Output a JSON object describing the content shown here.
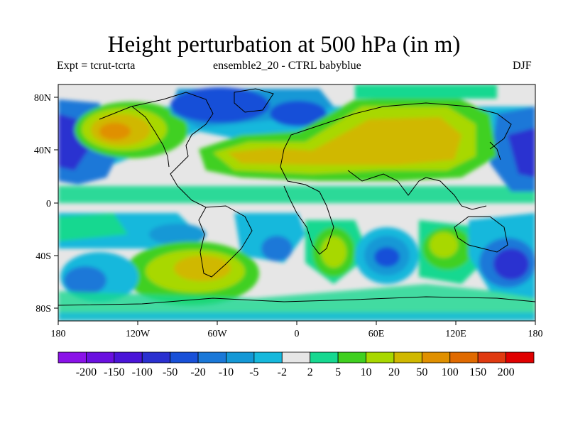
{
  "title": "Height perturbation at 500 hPa (in m)",
  "subtitle_left": "Expt = tcrut-tcrta",
  "subtitle_center": "ensemble2_20 - CTRL babyblue",
  "subtitle_right": "DJF",
  "lat_ticks": [
    "80N",
    "40N",
    "0",
    "40S",
    "80S"
  ],
  "lon_ticks": [
    "180",
    "120W",
    "60W",
    "0",
    "60E",
    "120E",
    "180"
  ],
  "colorbar": {
    "colors": [
      "#8a12e8",
      "#6a10e0",
      "#4a14d8",
      "#2a30d0",
      "#1850d8",
      "#1a78d8",
      "#1498d6",
      "#16b8dc",
      "#e6e6e6",
      "#16d890",
      "#40d020",
      "#a8d800",
      "#d0b800",
      "#e09000",
      "#e06a00",
      "#e03a10",
      "#e00000"
    ],
    "labels": [
      "-200",
      "-150",
      "-100",
      "-50",
      "-20",
      "-10",
      "-5",
      "-2",
      "2",
      "5",
      "10",
      "20",
      "50",
      "100",
      "150",
      "200"
    ]
  }
}
